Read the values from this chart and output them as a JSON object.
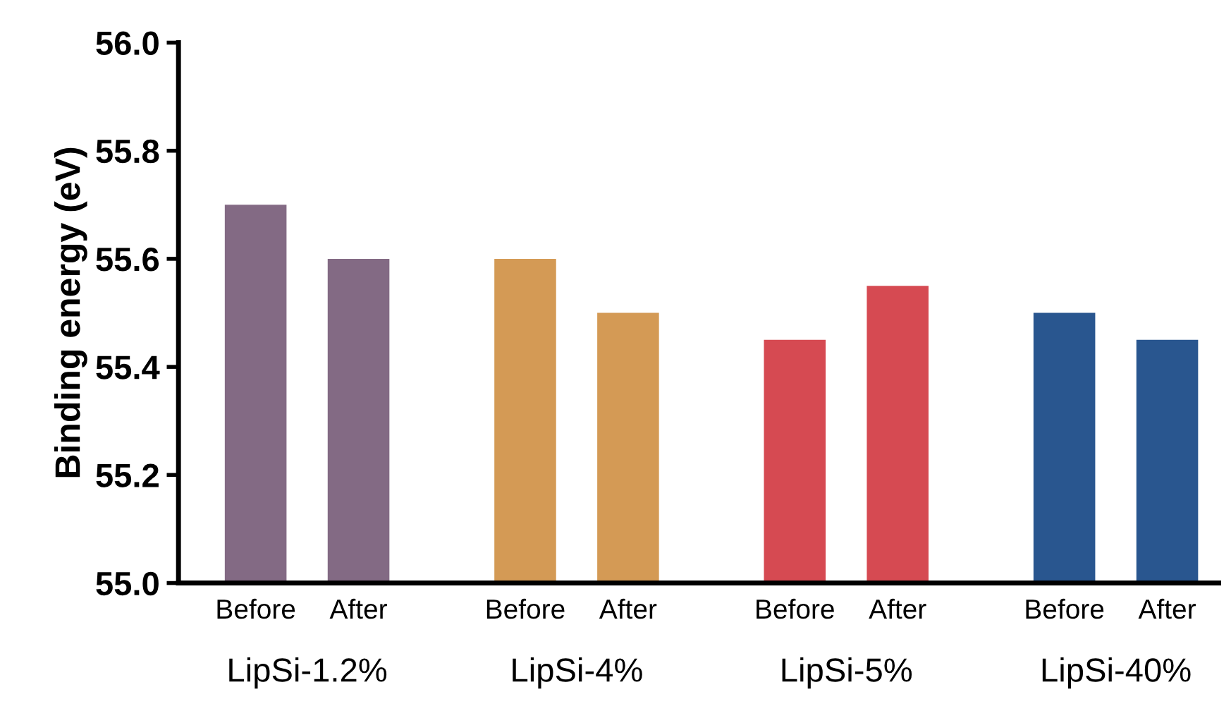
{
  "chart_data": {
    "type": "bar",
    "ylabel": "Binding energy (eV)",
    "categories": [
      "Before",
      "After",
      "Before",
      "After",
      "Before",
      "After",
      "Before",
      "After"
    ],
    "values": [
      55.7,
      55.6,
      55.6,
      55.5,
      55.45,
      55.55,
      55.5,
      55.45
    ],
    "colors": [
      "#836a84",
      "#836a84",
      "#d49a55",
      "#d49a55",
      "#d64a52",
      "#d64a52",
      "#29568f",
      "#29568f"
    ],
    "ylim": [
      55.0,
      56.0
    ],
    "yticks": [
      {
        "value": 55.0,
        "label": "55.0"
      },
      {
        "value": 55.2,
        "label": "55.2"
      },
      {
        "value": 55.4,
        "label": "55.4"
      },
      {
        "value": 55.6,
        "label": "55.6"
      },
      {
        "value": 55.8,
        "label": "55.8"
      },
      {
        "value": 56.0,
        "label": "56.0"
      }
    ],
    "annotations": [
      "LipSi-1.2%",
      "LipSi-4%",
      "LipSi-5%",
      "LipSi-40%"
    ],
    "grid": false
  }
}
